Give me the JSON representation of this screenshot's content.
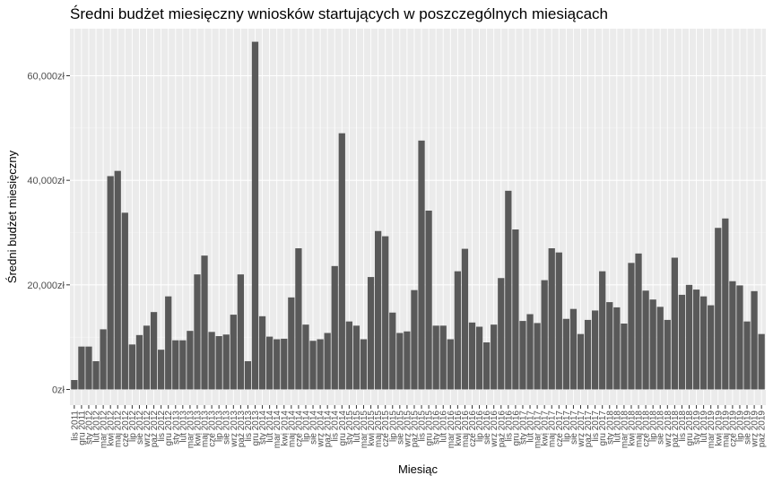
{
  "chart_data": {
    "type": "bar",
    "title": "Średni budżet miesięczny wniosków startujących w poszczególnych miesiącach",
    "xlabel": "Miesiąc",
    "ylabel": "Średni budżet miesięczny",
    "ylim": [
      -3000,
      69000
    ],
    "yticks": [
      0,
      20000,
      40000,
      60000
    ],
    "ytick_labels": [
      "0zł",
      "20,000zł",
      "40,000zł",
      "60,000zł"
    ],
    "grid": true,
    "colors": {
      "bar": "#595959",
      "panel": "#ebebeb",
      "grid_major": "#ffffff"
    },
    "categories": [
      "lis 2011",
      "gru 2011",
      "sty 2012",
      "lut 2012",
      "mar 2012",
      "kwi 2012",
      "maj 2012",
      "cze 2012",
      "lip 2012",
      "sie 2012",
      "wrz 2012",
      "paź 2012",
      "lis 2012",
      "gru 2012",
      "sty 2013",
      "lut 2013",
      "mar 2013",
      "kwi 2013",
      "maj 2013",
      "cze 2013",
      "lip 2013",
      "sie 2013",
      "wrz 2013",
      "paź 2013",
      "lis 2013",
      "gru 2013",
      "sty 2014",
      "lut 2014",
      "mar 2014",
      "kwi 2014",
      "maj 2014",
      "cze 2014",
      "lip 2014",
      "sie 2014",
      "wrz 2014",
      "paź 2014",
      "lis 2014",
      "gru 2014",
      "sty 2015",
      "lut 2015",
      "mar 2015",
      "kwi 2015",
      "maj 2015",
      "cze 2015",
      "lip 2015",
      "sie 2015",
      "wrz 2015",
      "paź 2015",
      "lis 2015",
      "gru 2015",
      "sty 2016",
      "lut 2016",
      "mar 2016",
      "kwi 2016",
      "maj 2016",
      "cze 2016",
      "lip 2016",
      "sie 2016",
      "wrz 2016",
      "paź 2016",
      "lis 2016",
      "gru 2016",
      "sty 2017",
      "lut 2017",
      "mar 2017",
      "kwi 2017",
      "maj 2017",
      "cze 2017",
      "lip 2017",
      "sie 2017",
      "wrz 2017",
      "paź 2017",
      "lis 2017",
      "gru 2017",
      "sty 2018",
      "lut 2018",
      "mar 2018",
      "kwi 2018",
      "maj 2018",
      "cze 2018",
      "lip 2018",
      "sie 2018",
      "wrz 2018",
      "paź 2018",
      "lis 2018",
      "gru 2018",
      "sty 2019",
      "lut 2019",
      "mar 2019",
      "kwi 2019",
      "maj 2019",
      "cze 2019",
      "lip 2019",
      "sie 2019",
      "wrz 2019",
      "paź 2019"
    ],
    "values": [
      1800,
      8200,
      8200,
      5400,
      11500,
      40800,
      41800,
      33800,
      8600,
      10400,
      12200,
      14800,
      7600,
      17800,
      9400,
      9400,
      11200,
      22000,
      25600,
      11000,
      10200,
      10500,
      14300,
      22000,
      5400,
      66500,
      14000,
      10100,
      9600,
      9700,
      17600,
      27000,
      12400,
      9300,
      9600,
      10800,
      23600,
      49000,
      13000,
      12200,
      9600,
      21500,
      30300,
      29300,
      14700,
      10800,
      11100,
      19000,
      47600,
      34200,
      12200,
      12200,
      9600,
      22600,
      26900,
      12800,
      12000,
      9000,
      12400,
      21300,
      38000,
      30600,
      13100,
      14400,
      12700,
      20900,
      27000,
      26200,
      13500,
      15400,
      10600,
      13300,
      15100,
      22600,
      16700,
      15700,
      12600,
      24200,
      26000,
      18900,
      17200,
      15800,
      13300,
      25200,
      18100,
      20000,
      19100,
      17800,
      16100,
      30900,
      32700,
      20700,
      19900,
      13000,
      18800,
      10600
    ]
  }
}
